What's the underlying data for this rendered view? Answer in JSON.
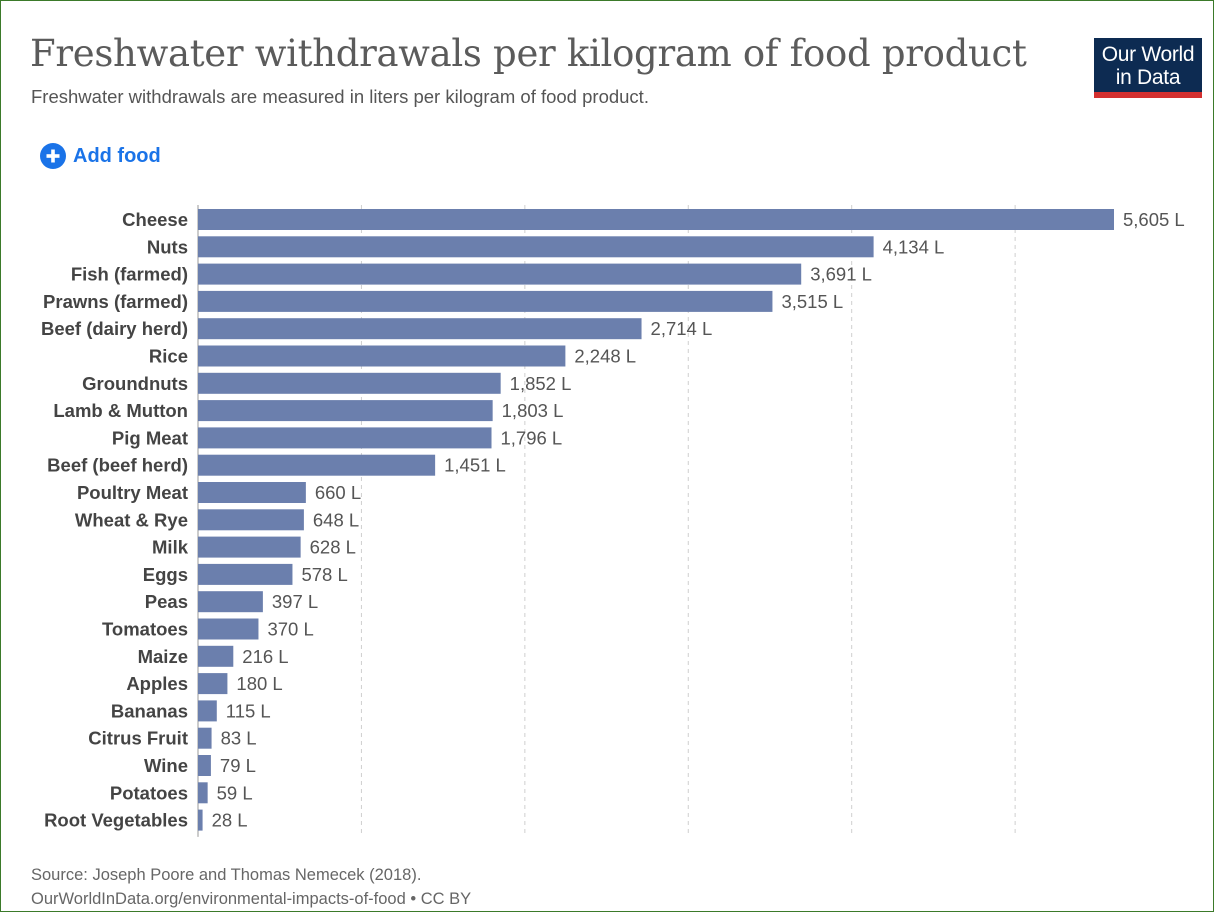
{
  "title": "Freshwater withdrawals per kilogram of food product",
  "subtitle": "Freshwater withdrawals are measured in liters per kilogram of food product.",
  "logo": {
    "line1": "Our World",
    "line2": "in Data"
  },
  "add_food_label": "Add food",
  "source": {
    "line1": "Source: Joseph Poore and Thomas Nemecek (2018).",
    "line2": "OurWorldInData.org/environmental-impacts-of-food • CC BY"
  },
  "colors": {
    "bar": "#6b7fad",
    "accent": "#1a73e8",
    "brand": "#0d2b52",
    "brand_stripe": "#d32f2f"
  },
  "chart_data": {
    "type": "bar",
    "orientation": "horizontal",
    "unit": "L",
    "categories": [
      "Cheese",
      "Nuts",
      "Fish (farmed)",
      "Prawns (farmed)",
      "Beef (dairy herd)",
      "Rice",
      "Groundnuts",
      "Lamb & Mutton",
      "Pig Meat",
      "Beef (beef herd)",
      "Poultry Meat",
      "Wheat & Rye",
      "Milk",
      "Eggs",
      "Peas",
      "Tomatoes",
      "Maize",
      "Apples",
      "Bananas",
      "Citrus Fruit",
      "Wine",
      "Potatoes",
      "Root Vegetables"
    ],
    "values": [
      5605,
      4134,
      3691,
      3515,
      2714,
      2248,
      1852,
      1803,
      1796,
      1451,
      660,
      648,
      628,
      578,
      397,
      370,
      216,
      180,
      115,
      83,
      79,
      59,
      28
    ],
    "value_labels": [
      "5,605 L",
      "4,134 L",
      "3,691 L",
      "3,515 L",
      "2,714 L",
      "2,248 L",
      "1,852 L",
      "1,803 L",
      "1,796 L",
      "1,451 L",
      "660 L",
      "648 L",
      "628 L",
      "578 L",
      "397 L",
      "370 L",
      "216 L",
      "180 L",
      "115 L",
      "83 L",
      "79 L",
      "59 L",
      "28 L"
    ],
    "xlim": [
      0,
      5605
    ],
    "gridlines": [
      0,
      1000,
      2000,
      3000,
      4000,
      5000
    ],
    "grid": true
  }
}
